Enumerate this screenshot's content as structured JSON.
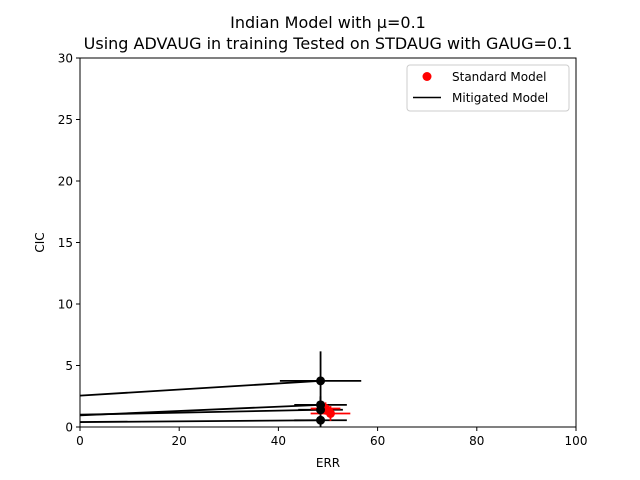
{
  "chart_data": {
    "type": "scatter",
    "title_lines": [
      "Indian Model with μ=0.1",
      "Using ADVAUG in training Tested on STDAUG with GAUG=0.1"
    ],
    "xlabel": "ERR",
    "ylabel": "CIC",
    "xlim": [
      0,
      100
    ],
    "ylim": [
      0,
      30
    ],
    "x_ticks": [
      0,
      20,
      40,
      60,
      80,
      100
    ],
    "y_ticks": [
      0,
      5,
      10,
      15,
      20,
      25,
      30
    ],
    "grid": false,
    "legend_position": "top-right",
    "series": [
      {
        "name": "Standard Model",
        "kind": "points",
        "color": "#ff0000",
        "points": [
          {
            "x": 50.5,
            "y": 1.1,
            "xerr": 4.0,
            "yerr": 0.6
          },
          {
            "x": 49.5,
            "y": 1.5,
            "xerr": 3.0,
            "yerr": 0.5
          }
        ]
      },
      {
        "name": "Mitigated Model",
        "kind": "lines",
        "color": "#000000",
        "lines": [
          {
            "x0": 0,
            "y0": 2.55,
            "x": 48.5,
            "y": 3.75,
            "xerr": 8.2,
            "yerr": 2.4
          },
          {
            "x0": 0,
            "y0": 1.0,
            "x": 48.5,
            "y": 1.4,
            "xerr": 4.5,
            "yerr": 1.0
          },
          {
            "x0": 0,
            "y0": 0.95,
            "x": 48.5,
            "y": 1.8,
            "xerr": 5.3,
            "yerr": 0.7
          },
          {
            "x0": 0,
            "y0": 0.4,
            "x": 48.5,
            "y": 0.55,
            "xerr": 5.3,
            "yerr": 0.6
          }
        ]
      }
    ]
  }
}
